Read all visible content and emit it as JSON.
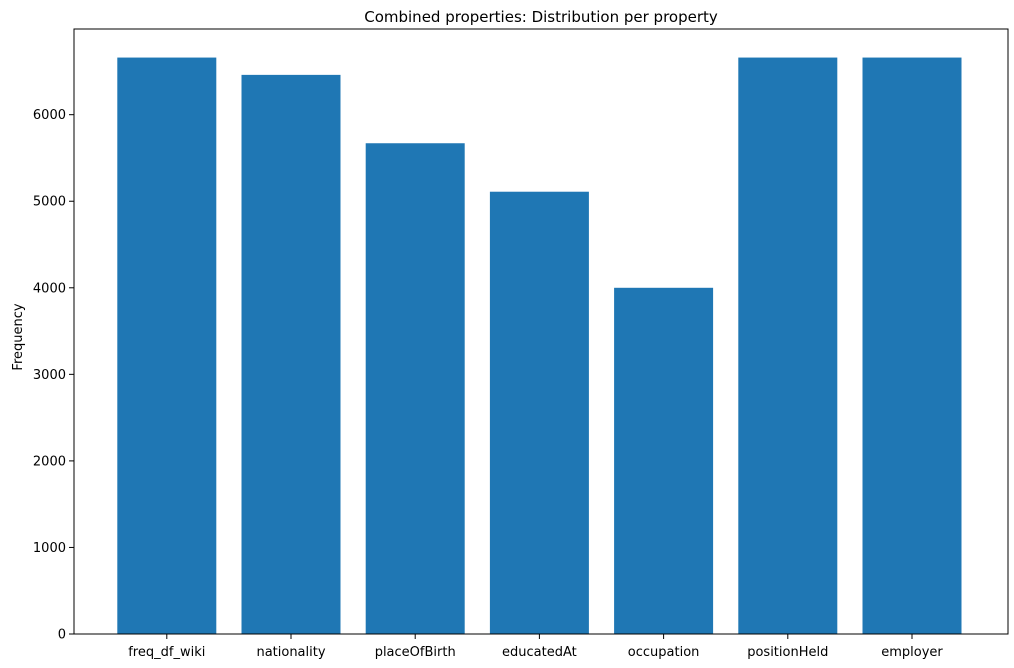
{
  "chart_data": {
    "type": "bar",
    "title": "Combined properties: Distribution per property",
    "xlabel": "",
    "ylabel": "Frequency",
    "categories": [
      "freq_df_wiki",
      "nationality",
      "placeOfBirth",
      "educatedAt",
      "occupation",
      "positionHeld",
      "employer"
    ],
    "values": [
      6660,
      6460,
      5670,
      5110,
      4000,
      6660,
      6660
    ],
    "ylim": [
      0,
      6990
    ],
    "yticks": [
      0,
      1000,
      2000,
      3000,
      4000,
      5000,
      6000
    ],
    "bar_color": "#1f77b4",
    "grid": false
  }
}
